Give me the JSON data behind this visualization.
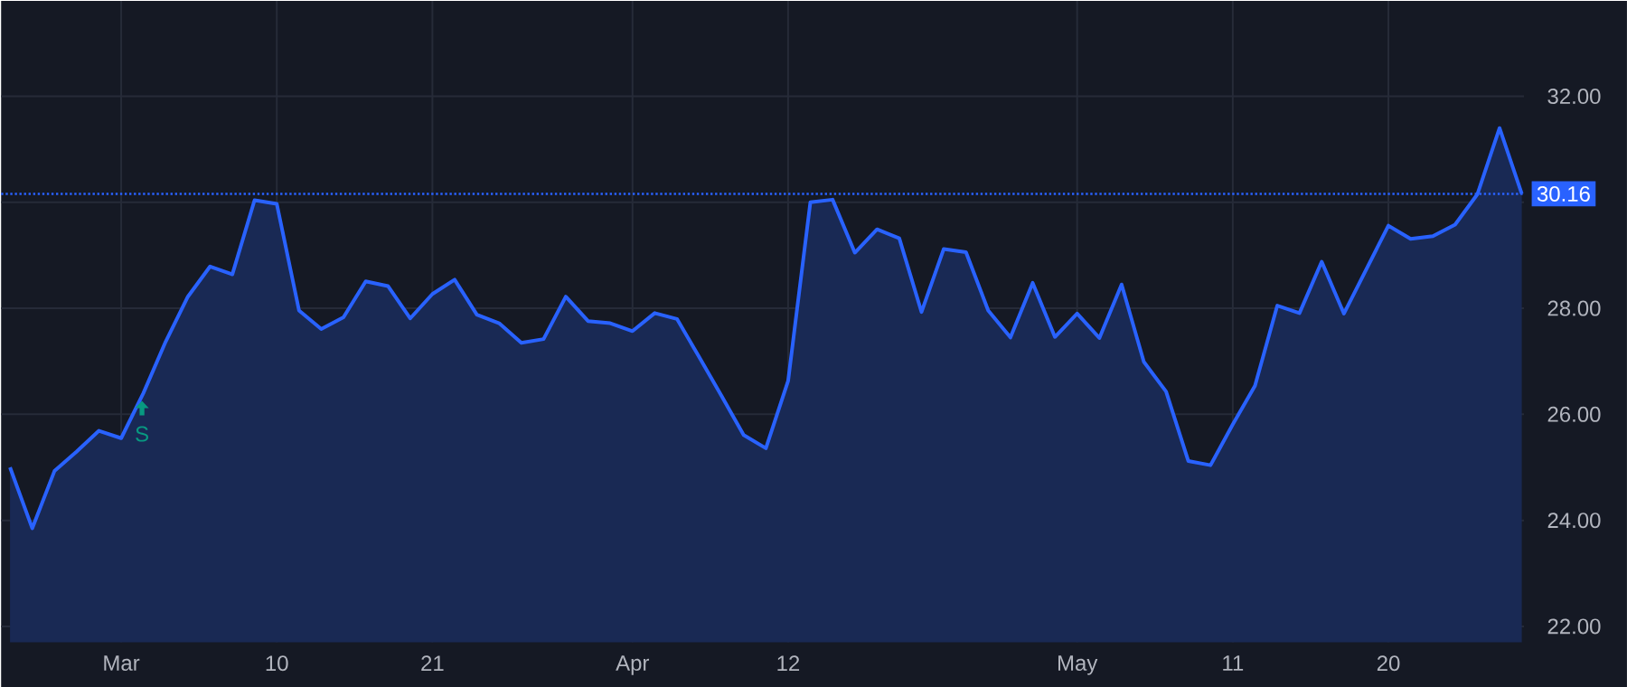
{
  "chart_data": {
    "type": "area",
    "color": "#2962ff",
    "categories": [
      null,
      null,
      null,
      null,
      null,
      "Mar",
      null,
      null,
      null,
      null,
      null,
      null,
      "10",
      null,
      null,
      null,
      null,
      null,
      null,
      "21",
      null,
      null,
      null,
      null,
      null,
      null,
      null,
      null,
      "Apr",
      null,
      null,
      null,
      null,
      null,
      null,
      "12",
      null,
      null,
      null,
      null,
      null,
      null,
      null,
      null,
      null,
      null,
      null,
      null,
      "May",
      null,
      null,
      null,
      null,
      null,
      null,
      "11",
      null,
      null,
      null,
      null,
      null,
      null,
      "20",
      null,
      null,
      null,
      null,
      null,
      null
    ],
    "values": [
      25.0,
      23.85,
      24.93,
      25.3,
      25.69,
      25.55,
      26.4,
      27.37,
      28.22,
      28.79,
      28.64,
      30.04,
      29.97,
      27.96,
      27.61,
      27.83,
      28.51,
      28.42,
      27.81,
      28.27,
      28.54,
      27.88,
      27.72,
      27.35,
      27.42,
      28.22,
      27.76,
      27.72,
      27.57,
      27.91,
      27.8,
      27.08,
      26.35,
      25.61,
      25.36,
      26.63,
      30.0,
      30.05,
      29.05,
      29.49,
      29.32,
      27.93,
      29.12,
      29.06,
      27.96,
      27.45,
      28.48,
      27.46,
      27.9,
      27.44,
      28.45,
      26.99,
      26.43,
      25.12,
      25.04,
      25.81,
      26.54,
      28.05,
      27.91,
      28.88,
      27.9,
      28.73,
      29.56,
      29.31,
      29.36,
      29.58,
      30.15,
      31.4,
      30.16
    ],
    "ylim": [
      21.7,
      33.8
    ],
    "yticks": [
      {
        "value": 22,
        "label": "22.00"
      },
      {
        "value": 24,
        "label": "24.00"
      },
      {
        "value": 26,
        "label": "26.00"
      },
      {
        "value": 28,
        "label": "28.00"
      },
      {
        "value": 30,
        "label": null
      },
      {
        "value": 32,
        "label": "32.00"
      }
    ],
    "grid": true,
    "ref_lines": [
      {
        "axis": "y",
        "value": 30.16,
        "label": "30.16",
        "color": "#2962ff",
        "line_style": "dotted"
      }
    ],
    "annotations": [
      "S"
    ]
  }
}
